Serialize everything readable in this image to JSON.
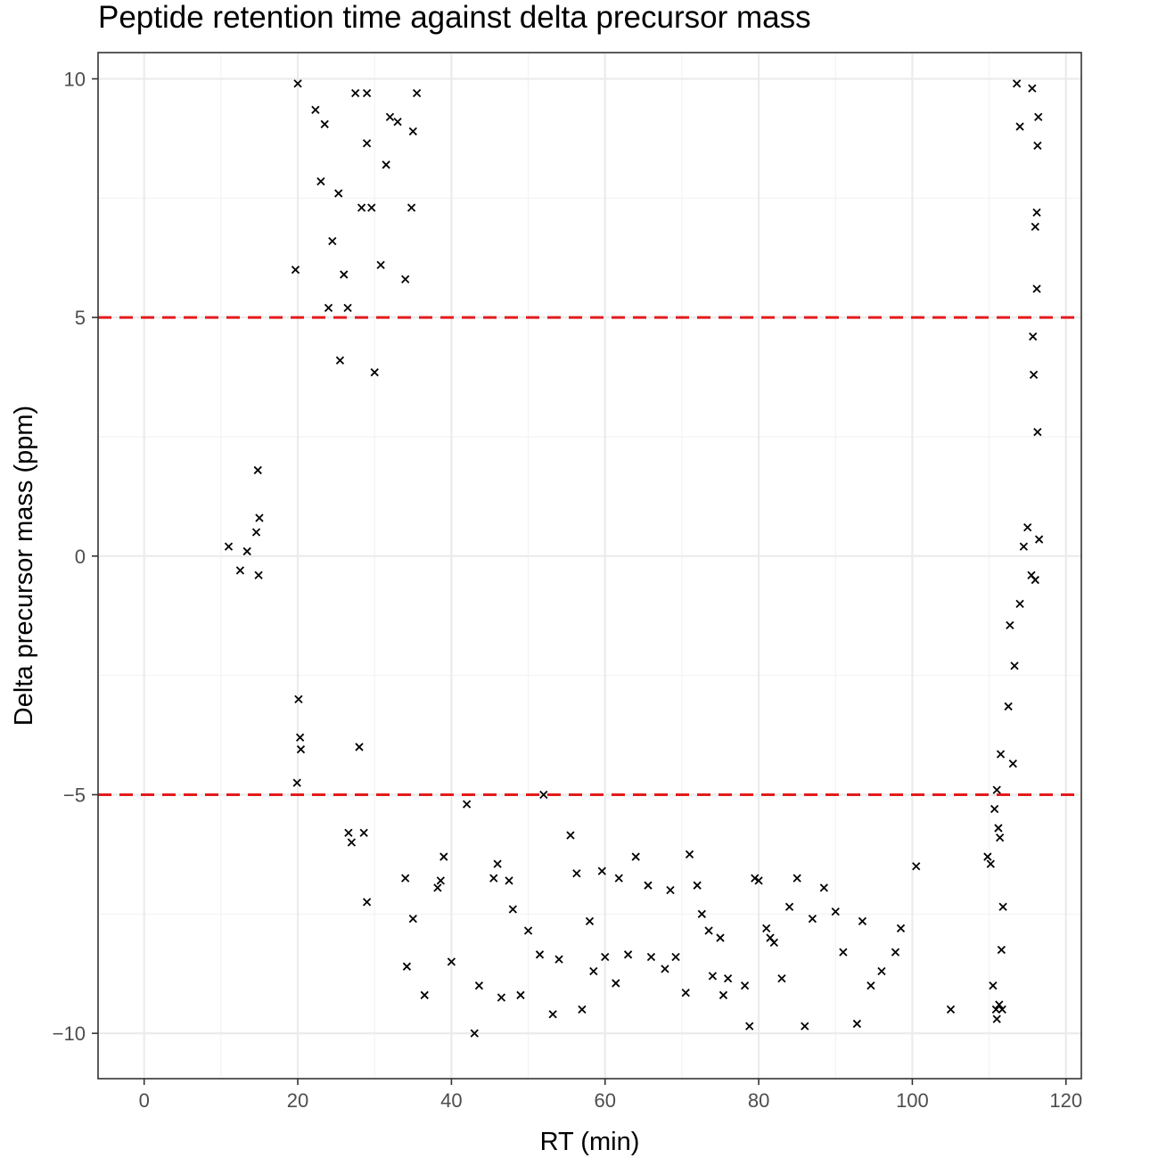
{
  "chart_data": {
    "type": "scatter",
    "title": "Peptide retention time against delta precursor mass",
    "xlabel": "RT (min)",
    "ylabel": "Delta precursor mass (ppm)",
    "xlim": [
      -6,
      122
    ],
    "ylim": [
      -10.95,
      10.55
    ],
    "x_ticks": [
      0,
      20,
      40,
      60,
      80,
      100,
      120
    ],
    "x_tick_labels": [
      "0",
      "20",
      "40",
      "60",
      "80",
      "100",
      "120"
    ],
    "y_ticks": [
      -10,
      -5,
      0,
      5,
      10
    ],
    "y_tick_labels": [
      "−10",
      "−5",
      "0",
      "5",
      "10"
    ],
    "grid": true,
    "marker": "x",
    "point_color": "#000000",
    "reference_lines": [
      {
        "axis": "y",
        "value": 5,
        "color": "#e41a1c",
        "style": "dashed"
      },
      {
        "axis": "y",
        "value": -5,
        "color": "#e41a1c",
        "style": "dashed"
      }
    ],
    "series": [
      {
        "points": [
          [
            11.0,
            0.2
          ],
          [
            12.5,
            -0.3
          ],
          [
            13.4,
            0.1
          ],
          [
            14.6,
            0.5
          ],
          [
            14.8,
            1.8
          ],
          [
            14.9,
            -0.4
          ],
          [
            15.0,
            0.8
          ],
          [
            19.7,
            6.0
          ],
          [
            20.0,
            9.9
          ],
          [
            19.9,
            -4.75
          ],
          [
            20.1,
            -3.0
          ],
          [
            20.4,
            -4.05
          ],
          [
            20.3,
            -3.8
          ],
          [
            22.3,
            9.35
          ],
          [
            23.0,
            7.85
          ],
          [
            23.5,
            9.05
          ],
          [
            24.0,
            5.2
          ],
          [
            24.5,
            6.6
          ],
          [
            25.3,
            7.6
          ],
          [
            26.0,
            5.9
          ],
          [
            25.5,
            4.1
          ],
          [
            26.5,
            5.2
          ],
          [
            26.6,
            -5.8
          ],
          [
            27.0,
            -6.0
          ],
          [
            28.0,
            -4.0
          ],
          [
            27.5,
            9.7
          ],
          [
            29.0,
            9.7
          ],
          [
            28.3,
            7.3
          ],
          [
            29.0,
            8.65
          ],
          [
            29.6,
            7.3
          ],
          [
            30.0,
            3.85
          ],
          [
            30.8,
            6.1
          ],
          [
            29.0,
            -7.25
          ],
          [
            28.6,
            -5.8
          ],
          [
            31.5,
            8.2
          ],
          [
            32.0,
            9.2
          ],
          [
            33.0,
            9.1
          ],
          [
            34.0,
            5.8
          ],
          [
            34.8,
            7.3
          ],
          [
            35.0,
            8.9
          ],
          [
            35.5,
            9.7
          ],
          [
            34.0,
            -6.75
          ],
          [
            34.2,
            -8.6
          ],
          [
            35.0,
            -7.6
          ],
          [
            36.5,
            -9.2
          ],
          [
            38.2,
            -6.95
          ],
          [
            38.6,
            -6.8
          ],
          [
            39.0,
            -6.3
          ],
          [
            40.0,
            -8.5
          ],
          [
            42.0,
            -5.2
          ],
          [
            43.0,
            -10.0
          ],
          [
            43.6,
            -9.0
          ],
          [
            45.5,
            -6.75
          ],
          [
            46.0,
            -6.45
          ],
          [
            46.5,
            -9.25
          ],
          [
            47.5,
            -6.8
          ],
          [
            48.0,
            -7.4
          ],
          [
            49.0,
            -9.2
          ],
          [
            50.0,
            -7.85
          ],
          [
            51.5,
            -8.35
          ],
          [
            52.0,
            -5.0
          ],
          [
            53.2,
            -9.6
          ],
          [
            54.0,
            -8.45
          ],
          [
            55.5,
            -5.85
          ],
          [
            56.3,
            -6.65
          ],
          [
            57.0,
            -9.5
          ],
          [
            58.0,
            -7.65
          ],
          [
            58.5,
            -8.7
          ],
          [
            59.6,
            -6.6
          ],
          [
            60.0,
            -8.4
          ],
          [
            61.4,
            -8.95
          ],
          [
            61.8,
            -6.75
          ],
          [
            63.0,
            -8.35
          ],
          [
            64.0,
            -6.3
          ],
          [
            65.6,
            -6.9
          ],
          [
            66.0,
            -8.4
          ],
          [
            67.8,
            -8.65
          ],
          [
            68.5,
            -7.0
          ],
          [
            69.2,
            -8.4
          ],
          [
            70.5,
            -9.15
          ],
          [
            71.0,
            -6.25
          ],
          [
            72.0,
            -6.9
          ],
          [
            72.6,
            -7.5
          ],
          [
            73.5,
            -7.85
          ],
          [
            74.0,
            -8.8
          ],
          [
            75.0,
            -8.0
          ],
          [
            75.4,
            -9.2
          ],
          [
            76.0,
            -8.85
          ],
          [
            78.2,
            -9.0
          ],
          [
            78.8,
            -9.85
          ],
          [
            79.5,
            -6.75
          ],
          [
            80.0,
            -6.8
          ],
          [
            81.0,
            -7.8
          ],
          [
            81.5,
            -8.0
          ],
          [
            82.0,
            -8.1
          ],
          [
            83.0,
            -8.85
          ],
          [
            84.0,
            -7.35
          ],
          [
            85.0,
            -6.75
          ],
          [
            86.0,
            -9.85
          ],
          [
            87.0,
            -7.6
          ],
          [
            88.5,
            -6.95
          ],
          [
            90.0,
            -7.45
          ],
          [
            91.0,
            -8.3
          ],
          [
            92.8,
            -9.8
          ],
          [
            93.5,
            -7.65
          ],
          [
            94.6,
            -9.0
          ],
          [
            96.0,
            -8.7
          ],
          [
            97.8,
            -8.3
          ],
          [
            98.5,
            -7.8
          ],
          [
            100.5,
            -6.5
          ],
          [
            105.0,
            -9.5
          ],
          [
            110.5,
            -9.0
          ],
          [
            110.9,
            -9.5
          ],
          [
            111.0,
            -9.7
          ],
          [
            111.3,
            -9.4
          ],
          [
            111.7,
            -9.5
          ],
          [
            111.6,
            -8.25
          ],
          [
            111.8,
            -7.35
          ],
          [
            109.8,
            -6.3
          ],
          [
            110.2,
            -6.45
          ],
          [
            110.7,
            -5.3
          ],
          [
            111.2,
            -5.7
          ],
          [
            111.4,
            -5.9
          ],
          [
            111.0,
            -4.9
          ],
          [
            111.5,
            -4.15
          ],
          [
            112.5,
            -3.15
          ],
          [
            113.1,
            -4.35
          ],
          [
            112.7,
            -1.45
          ],
          [
            113.3,
            -2.3
          ],
          [
            114.0,
            -1.0
          ],
          [
            114.5,
            0.2
          ],
          [
            115.0,
            0.6
          ],
          [
            115.5,
            -0.4
          ],
          [
            116.0,
            -0.5
          ],
          [
            116.3,
            2.6
          ],
          [
            116.5,
            0.35
          ],
          [
            115.8,
            3.8
          ],
          [
            115.7,
            4.6
          ],
          [
            116.2,
            5.6
          ],
          [
            116.0,
            6.9
          ],
          [
            116.2,
            7.2
          ],
          [
            116.3,
            8.6
          ],
          [
            116.4,
            9.2
          ],
          [
            115.6,
            9.8
          ],
          [
            114.0,
            9.0
          ],
          [
            113.6,
            9.9
          ]
        ]
      }
    ]
  }
}
